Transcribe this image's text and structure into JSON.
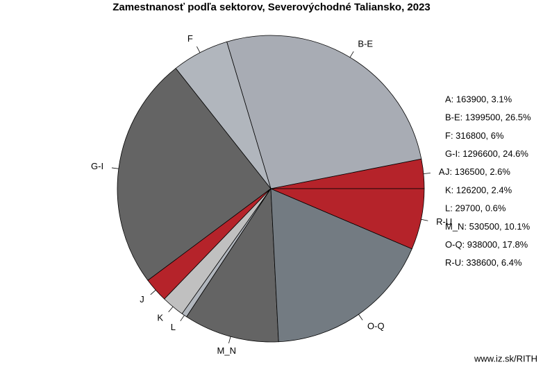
{
  "chart_data": {
    "type": "pie",
    "title": "Zamestnanosť podľa sektorov, Severovýchodné Taliansko, 2023",
    "categories": [
      "A",
      "B-E",
      "F",
      "G-I",
      "J",
      "K",
      "L",
      "M_N",
      "O-Q",
      "R-U"
    ],
    "values": [
      163900,
      1399500,
      316800,
      1296600,
      136500,
      126200,
      29700,
      530500,
      938000,
      338600
    ],
    "colors": [
      "#b5232a",
      "#a8acb4",
      "#b1b6bd",
      "#646464",
      "#b5232a",
      "#c0c0c0",
      "#b1b6bd",
      "#646464",
      "#737b82",
      "#b5232a"
    ],
    "legend_labels": [
      "A: 163900, 3.1%",
      "B-E: 1399500, 26.5%",
      "F: 316800, 6%",
      "G-I: 1296600, 24.6%",
      "J: 136500, 2.6%",
      "K: 126200, 2.4%",
      "L: 29700, 0.6%",
      "M_N: 530500, 10.1%",
      "O-Q: 938000, 17.8%",
      "R-U: 338600, 6.4%"
    ],
    "source": "www.iz.sk/RITH"
  }
}
